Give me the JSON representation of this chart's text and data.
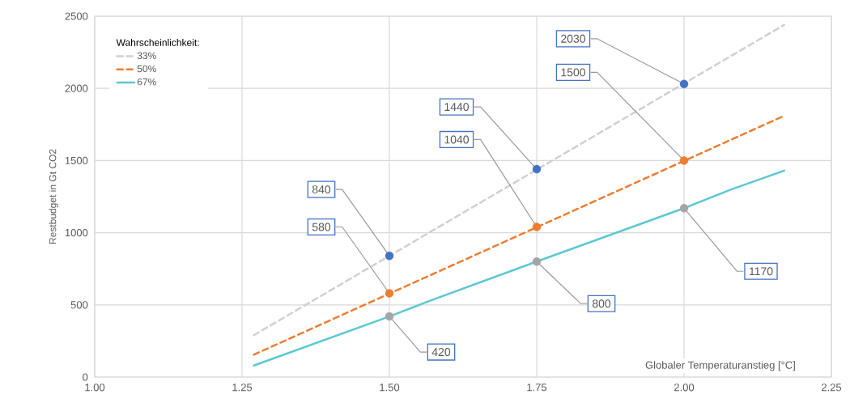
{
  "chart_data": {
    "type": "line",
    "xlabel": "Globaler Temperaturanstieg [°C]",
    "ylabel": "Restbudget in Gt CO2",
    "legend_title": "Wahrscheinlichkeit:",
    "xlim": [
      1.0,
      2.25
    ],
    "ylim": [
      0,
      2500
    ],
    "xticks": [
      {
        "value": 1.0,
        "label": "1.00"
      },
      {
        "value": 1.25,
        "label": "1.25"
      },
      {
        "value": 1.5,
        "label": "1.50"
      },
      {
        "value": 1.75,
        "label": "1.75"
      },
      {
        "value": 2.0,
        "label": "2.00"
      },
      {
        "value": 2.25,
        "label": "2.25"
      }
    ],
    "yticks": [
      0,
      500,
      1000,
      1500,
      2000,
      2500
    ],
    "grid": true,
    "legend": "top left",
    "series": [
      {
        "name": "33%",
        "color": "#d0d0d0",
        "line_style": "dashed",
        "x": [
          1.27,
          2.17
        ],
        "values": [
          290,
          2440
        ]
      },
      {
        "name": "50%",
        "color": "#ed7d31",
        "line_style": "dashed",
        "x": [
          1.27,
          2.17
        ],
        "values": [
          155,
          1810
        ]
      },
      {
        "name": "67%",
        "color": "#5bc8d0",
        "line_style": "solid",
        "x": [
          1.27,
          1.5,
          1.57,
          1.75,
          2.0,
          2.08,
          2.17
        ],
        "values": [
          80,
          420,
          530,
          800,
          1170,
          1300,
          1430
        ]
      },
      {
        "type": "scatter",
        "color": "#4472c4",
        "x": [
          1.5,
          1.75,
          2.0
        ],
        "values": [
          840,
          1440,
          2030
        ],
        "value_labels": [
          "840",
          "1440",
          "2030"
        ]
      },
      {
        "type": "scatter",
        "color": "#ed7d31",
        "x": [
          1.5,
          1.75,
          2.0
        ],
        "values": [
          580,
          1040,
          1500
        ],
        "value_labels": [
          "580",
          "1040",
          "1500"
        ]
      },
      {
        "type": "scatter",
        "color": "#a5a5a5",
        "x": [
          1.5,
          1.75,
          2.0
        ],
        "values": [
          420,
          800,
          1170
        ],
        "value_labels": [
          "420",
          "800",
          "1170"
        ]
      }
    ]
  }
}
